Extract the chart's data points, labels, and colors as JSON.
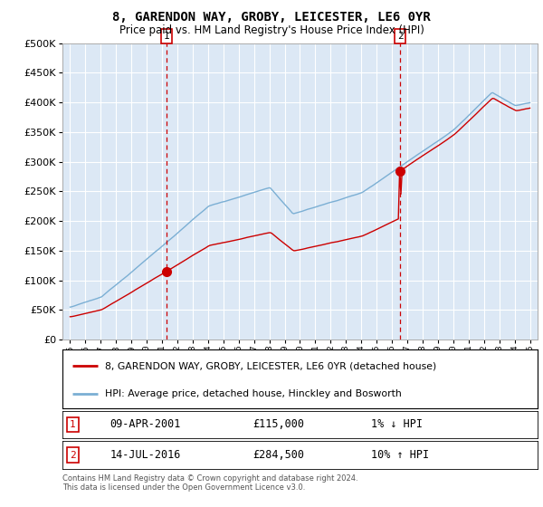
{
  "title": "8, GARENDON WAY, GROBY, LEICESTER, LE6 0YR",
  "subtitle": "Price paid vs. HM Land Registry's House Price Index (HPI)",
  "legend_line1": "8, GARENDON WAY, GROBY, LEICESTER, LE6 0YR (detached house)",
  "legend_line2": "HPI: Average price, detached house, Hinckley and Bosworth",
  "footnote": "Contains HM Land Registry data © Crown copyright and database right 2024.\nThis data is licensed under the Open Government Licence v3.0.",
  "purchase1": {
    "date": "09-APR-2001",
    "price": 115000,
    "price_str": "£115,000",
    "pct": "1%",
    "dir": "↓",
    "year": 2001.27
  },
  "purchase2": {
    "date": "14-JUL-2016",
    "price": 284500,
    "price_str": "£284,500",
    "pct": "10%",
    "dir": "↑",
    "year": 2016.54
  },
  "ylim": [
    0,
    500000
  ],
  "xlim": [
    1994.5,
    2025.5
  ],
  "hpi_color": "#7bafd4",
  "price_color": "#cc0000",
  "plot_bg_color": "#dce8f5",
  "background_color": "#ffffff",
  "grid_color": "#ffffff"
}
